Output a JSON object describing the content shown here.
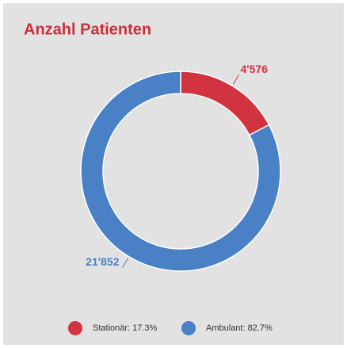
{
  "chart_data": {
    "type": "pie",
    "donut": true,
    "title": "Anzahl Patienten",
    "categories": [
      "Stationär: 17.3%",
      "Ambulant: 82.7%"
    ],
    "values": [
      4576,
      21852
    ],
    "value_labels": [
      "4'576",
      "21'852"
    ],
    "colors": [
      "#d13440",
      "#4a80c6"
    ],
    "legend": "bottom"
  }
}
